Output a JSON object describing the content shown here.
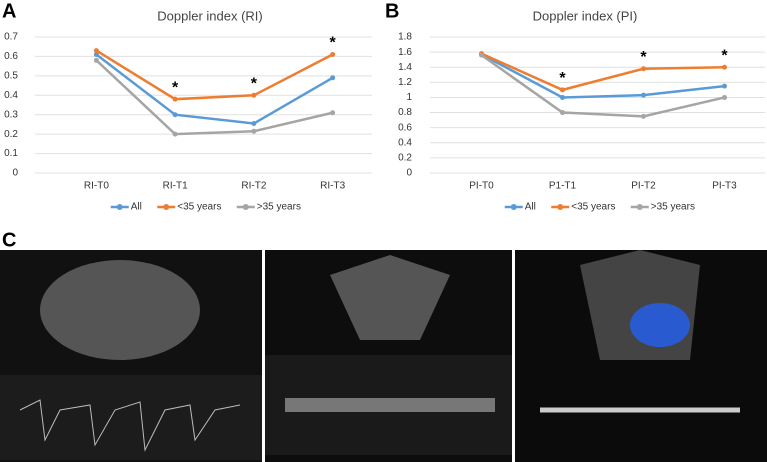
{
  "panel_labels": [
    "A",
    "B",
    "C"
  ],
  "chart_data": [
    {
      "type": "line",
      "title": "Doppler index (RI)",
      "categories": [
        "RI-T0",
        "RI-T1",
        "RI-T2",
        "RI-T3"
      ],
      "series": [
        {
          "name": "All",
          "color": "#5b9bd5",
          "values": [
            0.61,
            0.3,
            0.255,
            0.49
          ]
        },
        {
          "name": "<35 years",
          "color": "#ed7d31",
          "values": [
            0.63,
            0.38,
            0.4,
            0.61
          ]
        },
        {
          "name": ">35 years",
          "color": "#a5a5a5",
          "values": [
            0.58,
            0.2,
            0.215,
            0.31
          ]
        }
      ],
      "annotations": [
        {
          "text": "*",
          "x": "RI-T1"
        },
        {
          "text": "*",
          "x": "RI-T2"
        },
        {
          "text": "*",
          "x": "RI-T3"
        }
      ],
      "ylim": [
        0,
        0.7
      ],
      "yticks": [
        0,
        0.1,
        0.2,
        0.3,
        0.4,
        0.5,
        0.6,
        0.7
      ],
      "grid": true,
      "legend": "bottom"
    },
    {
      "type": "line",
      "title": "Doppler index (PI)",
      "categories": [
        "PI-T0",
        "P1-T1",
        "PI-T2",
        "PI-T3"
      ],
      "series": [
        {
          "name": "All",
          "color": "#5b9bd5",
          "values": [
            1.57,
            1.0,
            1.03,
            1.15
          ]
        },
        {
          "name": "<35 years",
          "color": "#ed7d31",
          "values": [
            1.58,
            1.1,
            1.38,
            1.4
          ]
        },
        {
          "name": ">35 years",
          "color": "#a5a5a5",
          "values": [
            1.56,
            0.8,
            0.75,
            1.0
          ]
        }
      ],
      "annotations": [
        {
          "text": "*",
          "x": "P1-T1"
        },
        {
          "text": "*",
          "x": "PI-T2"
        },
        {
          "text": "*",
          "x": "PI-T3"
        }
      ],
      "ylim": [
        0,
        1.8
      ],
      "yticks": [
        0,
        0.2,
        0.4,
        0.6,
        0.8,
        1,
        1.2,
        1.4,
        1.6,
        1.8
      ],
      "grid": true,
      "legend": "bottom"
    }
  ]
}
